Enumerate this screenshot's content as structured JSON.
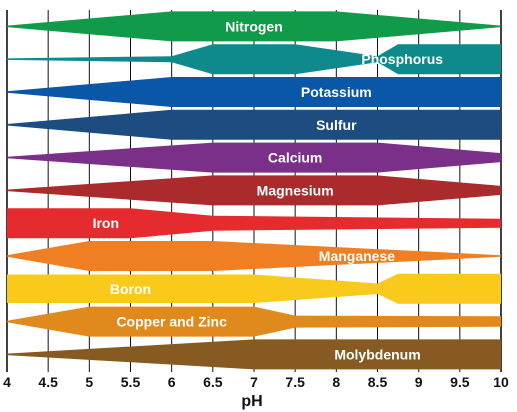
{
  "chart_data": {
    "type": "area",
    "xlabel": "pH",
    "xlim": [
      4,
      10
    ],
    "x_ticks": [
      "4",
      "4.5",
      "5",
      "5.5",
      "6",
      "6.5",
      "7",
      "7.5",
      "8",
      "8.5",
      "9",
      "9.5",
      "10"
    ],
    "grid": true,
    "series": [
      {
        "name": "Nitrogen",
        "color": "#119a49",
        "thickness": [
          [
            4,
            0.05
          ],
          [
            6,
            1.0
          ],
          [
            8,
            1.0
          ],
          [
            10,
            0.05
          ]
        ]
      },
      {
        "name": "Phosphorus",
        "color": "#0f8a8c",
        "thickness": [
          [
            4,
            0.05
          ],
          [
            6,
            0.2
          ],
          [
            6.5,
            1.0
          ],
          [
            7.5,
            1.0
          ],
          [
            8.5,
            0.2
          ],
          [
            8.75,
            1.0
          ],
          [
            10,
            1.0
          ]
        ]
      },
      {
        "name": "Potassium",
        "color": "#0a57a8",
        "thickness": [
          [
            4,
            0.05
          ],
          [
            6,
            1.0
          ],
          [
            10,
            1.0
          ]
        ]
      },
      {
        "name": "Sulfur",
        "color": "#1c4c80",
        "thickness": [
          [
            4,
            0.05
          ],
          [
            6,
            1.0
          ],
          [
            10,
            1.0
          ]
        ]
      },
      {
        "name": "Calcium",
        "color": "#7a3089",
        "thickness": [
          [
            4,
            0.05
          ],
          [
            6.5,
            1.0
          ],
          [
            8.5,
            1.0
          ],
          [
            10,
            0.3
          ]
        ]
      },
      {
        "name": "Magnesium",
        "color": "#ab2b2c",
        "thickness": [
          [
            4,
            0.05
          ],
          [
            6.5,
            1.0
          ],
          [
            8.5,
            1.0
          ],
          [
            10,
            0.3
          ]
        ]
      },
      {
        "name": "Iron",
        "color": "#e52b2d",
        "thickness": [
          [
            4,
            1.0
          ],
          [
            5.5,
            1.0
          ],
          [
            6.5,
            0.5
          ],
          [
            10,
            0.3
          ]
        ]
      },
      {
        "name": "Manganese",
        "color": "#ef7f22",
        "thickness": [
          [
            4,
            0.05
          ],
          [
            5,
            1.0
          ],
          [
            6.5,
            1.0
          ],
          [
            10,
            0.05
          ]
        ]
      },
      {
        "name": "Boron",
        "color": "#f9c91b",
        "thickness": [
          [
            4,
            0.95
          ],
          [
            7,
            0.95
          ],
          [
            8.5,
            0.35
          ],
          [
            8.75,
            1.0
          ],
          [
            10,
            1.0
          ]
        ]
      },
      {
        "name": "Copper and Zinc",
        "color": "#e08a1d",
        "thickness": [
          [
            4,
            0.05
          ],
          [
            5,
            1.0
          ],
          [
            7,
            1.0
          ],
          [
            7.5,
            0.4
          ],
          [
            10,
            0.35
          ]
        ]
      },
      {
        "name": "Molybdenum",
        "color": "#875a21",
        "thickness": [
          [
            4,
            0.05
          ],
          [
            7,
            1.0
          ],
          [
            10,
            1.0
          ]
        ]
      }
    ]
  }
}
